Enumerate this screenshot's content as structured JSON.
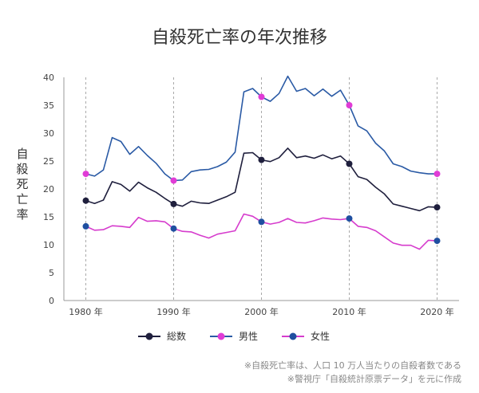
{
  "chart_data": {
    "type": "line",
    "title": "自殺死亡率の年次推移",
    "ylabel": "自殺死亡率",
    "xlabel": "",
    "xlim": [
      1977.5,
      2022.5
    ],
    "ylim": [
      0,
      40
    ],
    "y_ticks": [
      0,
      5,
      10,
      15,
      20,
      25,
      30,
      35,
      40
    ],
    "x_ticks": [
      {
        "value": 1980,
        "label": "1980 年"
      },
      {
        "value": 1990,
        "label": "1990 年"
      },
      {
        "value": 2000,
        "label": "2000 年"
      },
      {
        "value": 2010,
        "label": "2010 年"
      },
      {
        "value": 2020,
        "label": "2020 年"
      }
    ],
    "vertical_gridlines": [
      1980,
      1990,
      2000,
      2010,
      2020
    ],
    "highlight_years": [
      1980,
      1990,
      2000,
      2010,
      2020
    ],
    "x": [
      1980,
      1981,
      1982,
      1983,
      1984,
      1985,
      1986,
      1987,
      1988,
      1989,
      1990,
      1991,
      1992,
      1993,
      1994,
      1995,
      1996,
      1997,
      1998,
      1999,
      2000,
      2001,
      2002,
      2003,
      2004,
      2005,
      2006,
      2007,
      2008,
      2009,
      2010,
      2011,
      2012,
      2013,
      2014,
      2015,
      2016,
      2017,
      2018,
      2019,
      2020
    ],
    "series": [
      {
        "name": "総数",
        "color": "#1f1f3d",
        "values": [
          17.9,
          17.4,
          18.0,
          21.3,
          20.8,
          19.6,
          21.2,
          20.2,
          19.4,
          18.3,
          17.3,
          16.9,
          17.8,
          17.5,
          17.4,
          18.0,
          18.6,
          19.4,
          26.4,
          26.5,
          25.2,
          24.9,
          25.6,
          27.3,
          25.6,
          25.9,
          25.5,
          26.1,
          25.4,
          25.9,
          24.5,
          22.2,
          21.7,
          20.3,
          19.1,
          17.3,
          16.9,
          16.5,
          16.1,
          16.8,
          16.7
        ]
      },
      {
        "name": "男性",
        "color": "#2a5aa5",
        "values": [
          22.7,
          22.3,
          23.4,
          29.2,
          28.5,
          26.2,
          27.6,
          26.0,
          24.6,
          22.7,
          21.5,
          21.6,
          23.1,
          23.4,
          23.5,
          24.0,
          24.8,
          26.6,
          37.4,
          38.0,
          36.5,
          35.7,
          37.1,
          40.2,
          37.5,
          38.0,
          36.7,
          37.9,
          36.6,
          37.7,
          35.0,
          31.3,
          30.4,
          28.2,
          26.8,
          24.5,
          24.0,
          23.2,
          22.9,
          22.7,
          22.7
        ]
      },
      {
        "name": "女性",
        "color": "#d63ccd",
        "values": [
          13.3,
          12.6,
          12.7,
          13.4,
          13.3,
          13.1,
          14.9,
          14.2,
          14.3,
          14.1,
          12.9,
          12.4,
          12.3,
          11.7,
          11.2,
          11.9,
          12.2,
          12.5,
          15.5,
          15.1,
          14.1,
          13.7,
          14.0,
          14.7,
          14.0,
          13.9,
          14.3,
          14.8,
          14.6,
          14.5,
          14.7,
          13.3,
          13.1,
          12.5,
          11.4,
          10.3,
          9.9,
          9.9,
          9.2,
          10.8,
          10.7
        ]
      }
    ],
    "markers": [
      {
        "series": "総数",
        "color": "#1f1f3d",
        "points": [
          [
            1980,
            17.9
          ],
          [
            1990,
            17.3
          ],
          [
            2000,
            25.2
          ],
          [
            2010,
            24.5
          ],
          [
            2020,
            16.7
          ]
        ]
      },
      {
        "series": "男性",
        "color": "#e03cd6",
        "points": [
          [
            1980,
            22.7
          ],
          [
            1990,
            21.5
          ],
          [
            2000,
            36.5
          ],
          [
            2010,
            35.0
          ],
          [
            2020,
            22.7
          ]
        ]
      },
      {
        "series": "女性",
        "color": "#1f4fa0",
        "points": [
          [
            1980,
            13.3
          ],
          [
            1990,
            12.9
          ],
          [
            2000,
            14.1
          ],
          [
            2010,
            14.7
          ],
          [
            2020,
            10.7
          ]
        ]
      }
    ],
    "legend": {
      "placement": "bottom-center",
      "items": [
        {
          "label": "総数",
          "line_color": "#1f1f3d",
          "dot_color": "#1f1f3d"
        },
        {
          "label": "男性",
          "line_color": "#2a5aa5",
          "dot_color": "#e03cd6"
        },
        {
          "label": "女性",
          "line_color": "#d63ccd",
          "dot_color": "#1f4fa0"
        }
      ]
    },
    "notes": [
      "※自殺死亡率は、人口 10 万人当たりの自殺者数である",
      "※警視庁「自殺統計原票データ」を元に作成"
    ],
    "colors": {
      "axis": "#999999",
      "gridline": "#aaaaaa"
    }
  }
}
